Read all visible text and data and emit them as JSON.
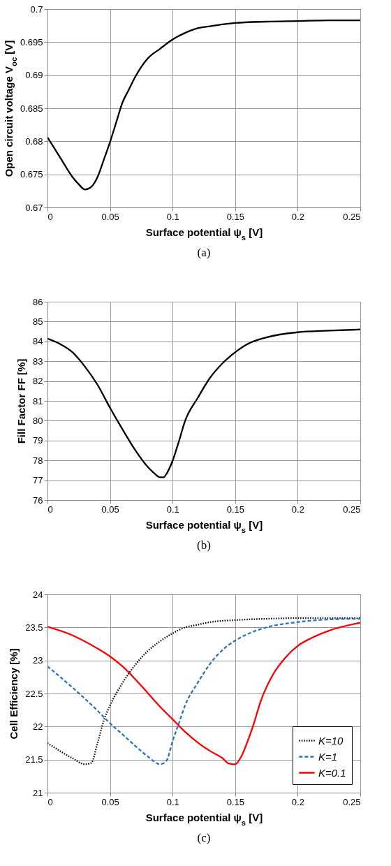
{
  "chart_data": [
    {
      "type": "line",
      "xlabel": "Surface potential ψ$_{s}$ [V]",
      "ylabel": "Open circuit voltage V$_{oc}$ [V]",
      "annotations": [
        "(a)"
      ],
      "xlim": [
        0,
        0.25
      ],
      "xticks": [
        0,
        0.05,
        0.1,
        0.15,
        0.2,
        0.25
      ],
      "ylim": [
        0.67,
        0.7
      ],
      "yticks": [
        0.67,
        0.675,
        0.68,
        0.685,
        0.69,
        0.695,
        0.7
      ],
      "grid": true,
      "series": [
        {
          "color": "#000000",
          "x": [
            0,
            0.01,
            0.02,
            0.025,
            0.03,
            0.035,
            0.04,
            0.045,
            0.05,
            0.055,
            0.06,
            0.065,
            0.07,
            0.08,
            0.09,
            0.1,
            0.11,
            0.12,
            0.13,
            0.14,
            0.15,
            0.175,
            0.2,
            0.225,
            0.25
          ],
          "values": [
            0.6806,
            0.6776,
            0.6746,
            0.6735,
            0.6727,
            0.6731,
            0.6746,
            0.6772,
            0.6799,
            0.6829,
            0.6859,
            0.6878,
            0.6897,
            0.6925,
            0.694,
            0.6954,
            0.6964,
            0.6971,
            0.6974,
            0.6977,
            0.6979,
            0.6981,
            0.6982,
            0.6983,
            0.6983
          ]
        }
      ]
    },
    {
      "type": "line",
      "xlabel": "Surface potential ψ$_{s}$ [V]",
      "ylabel": "Fill Factor FF [%]",
      "annotations": [
        "(b)"
      ],
      "xlim": [
        0,
        0.25
      ],
      "xticks": [
        0,
        0.05,
        0.1,
        0.15,
        0.2,
        0.25
      ],
      "ylim": [
        76,
        86
      ],
      "yticks": [
        76,
        77,
        78,
        79,
        80,
        81,
        82,
        83,
        84,
        85,
        86
      ],
      "grid": true,
      "series": [
        {
          "color": "#000000",
          "x": [
            0,
            0.01,
            0.02,
            0.03,
            0.04,
            0.05,
            0.06,
            0.07,
            0.08,
            0.085,
            0.09,
            0.093,
            0.095,
            0.1,
            0.105,
            0.11,
            0.12,
            0.13,
            0.14,
            0.15,
            0.16,
            0.175,
            0.2,
            0.225,
            0.25
          ],
          "values": [
            84.14,
            83.87,
            83.45,
            82.72,
            81.81,
            80.65,
            79.56,
            78.53,
            77.68,
            77.37,
            77.15,
            77.15,
            77.31,
            77.98,
            78.95,
            79.99,
            81.14,
            82.17,
            82.9,
            83.45,
            83.87,
            84.2,
            84.46,
            84.54,
            84.6
          ]
        }
      ]
    },
    {
      "type": "line",
      "xlabel": "Surface potential ψ$_{s}$ [V]",
      "ylabel": "Cell Efficiency [%]",
      "annotations": [
        "(c)"
      ],
      "xlim": [
        0,
        0.25
      ],
      "xticks": [
        0,
        0.05,
        0.1,
        0.15,
        0.2,
        0.25
      ],
      "ylim": [
        21,
        24
      ],
      "yticks": [
        21,
        21.5,
        22,
        22.5,
        23,
        23.5,
        24
      ],
      "grid": true,
      "legend": "bottom right",
      "series": [
        {
          "name": "K=10",
          "color": "#000000",
          "line_style": "dotted",
          "x": [
            0,
            0.01,
            0.02,
            0.03,
            0.035,
            0.04,
            0.045,
            0.05,
            0.06,
            0.07,
            0.08,
            0.09,
            0.1,
            0.11,
            0.12,
            0.13,
            0.15,
            0.175,
            0.2,
            0.25
          ],
          "values": [
            21.75,
            21.63,
            21.52,
            21.43,
            21.45,
            21.75,
            22.09,
            22.32,
            22.66,
            22.93,
            23.14,
            23.29,
            23.41,
            23.5,
            23.54,
            23.58,
            23.61,
            23.63,
            23.64,
            23.64
          ]
        },
        {
          "name": "K=1",
          "color": "#2e75b6",
          "line_style": "dashed",
          "x": [
            0,
            0.02,
            0.04,
            0.05,
            0.06,
            0.07,
            0.08,
            0.09,
            0.095,
            0.1,
            0.105,
            0.11,
            0.12,
            0.13,
            0.14,
            0.15,
            0.16,
            0.175,
            0.2,
            0.225,
            0.25
          ],
          "values": [
            22.91,
            22.59,
            22.24,
            22.05,
            21.88,
            21.71,
            21.55,
            21.43,
            21.48,
            21.78,
            22.05,
            22.32,
            22.66,
            22.95,
            23.16,
            23.3,
            23.4,
            23.5,
            23.58,
            23.62,
            23.63
          ]
        },
        {
          "name": "K=0.1",
          "color": "#ff0000",
          "line_style": "solid",
          "x": [
            0,
            0.02,
            0.04,
            0.05,
            0.06,
            0.07,
            0.08,
            0.09,
            0.1,
            0.11,
            0.12,
            0.13,
            0.14,
            0.145,
            0.15,
            0.155,
            0.16,
            0.165,
            0.17,
            0.18,
            0.19,
            0.2,
            0.21,
            0.225,
            0.25
          ],
          "values": [
            23.51,
            23.38,
            23.18,
            23.06,
            22.91,
            22.72,
            22.51,
            22.3,
            22.11,
            21.92,
            21.76,
            21.63,
            21.52,
            21.44,
            21.43,
            21.55,
            21.78,
            22.05,
            22.36,
            22.78,
            23.04,
            23.22,
            23.33,
            23.45,
            23.57
          ]
        }
      ]
    }
  ]
}
